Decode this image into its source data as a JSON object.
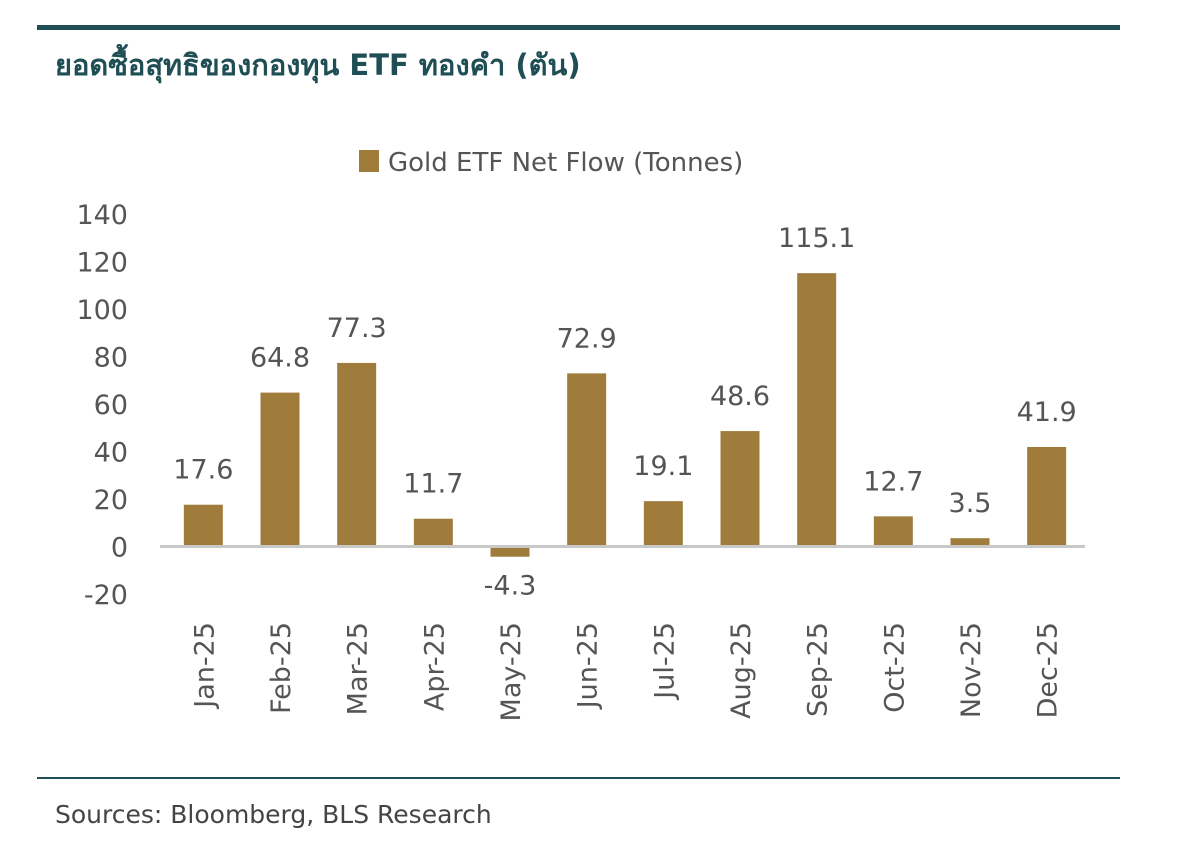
{
  "title": "ยอดซื้อสุทธิของกองทุน ETF ทองคำ (ตัน)",
  "source": "Sources: Bloomberg, BLS Research",
  "colors": {
    "bar": "#a07c3c",
    "accent": "#1f4f55",
    "axis": "#c8c8c8",
    "text": "#555555"
  },
  "chart_data": {
    "type": "bar",
    "title": "ยอดซื้อสุทธิของกองทุน ETF ทองคำ (ตัน)",
    "legend": "Gold ETF Net Flow (Tonnes)",
    "legend_position": "top-center",
    "categories": [
      "Jan-25",
      "Feb-25",
      "Mar-25",
      "Apr-25",
      "May-25",
      "Jun-25",
      "Jul-25",
      "Aug-25",
      "Sep-25",
      "Oct-25",
      "Nov-25",
      "Dec-25"
    ],
    "values": [
      17.6,
      64.8,
      77.3,
      11.7,
      -4.3,
      72.9,
      19.1,
      48.6,
      115.1,
      12.7,
      3.5,
      41.9
    ],
    "data_labels": [
      "17.6",
      "64.8",
      "77.3",
      "11.7",
      "-4.3",
      "72.9",
      "19.1",
      "48.6",
      "115.1",
      "12.7",
      "3.5",
      "41.9"
    ],
    "yticks": [
      140,
      120,
      100,
      80,
      60,
      40,
      20,
      0,
      -20
    ],
    "ylim": [
      -20,
      140
    ],
    "xlabel": "",
    "ylabel": "",
    "grid": false
  }
}
